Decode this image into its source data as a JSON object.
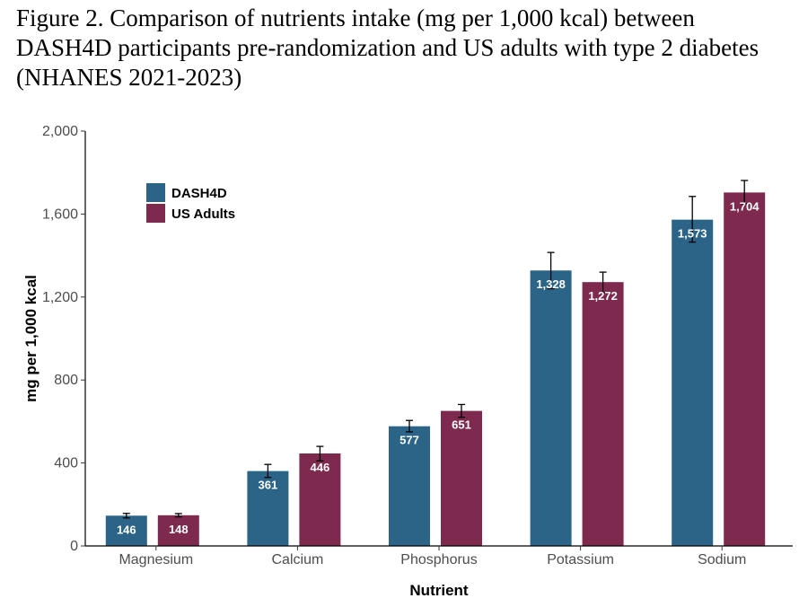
{
  "figure": {
    "caption": "Figure 2. Comparison of nutrients intake (mg per 1,000 kcal) between DASH4D participants pre-randomization and US adults with type 2 diabetes (NHANES 2021-2023)"
  },
  "chart_data": {
    "type": "bar",
    "title": "",
    "xlabel": "Nutrient",
    "ylabel": "mg per 1,000 kcal",
    "ylim": [
      0,
      2000
    ],
    "yticks": [
      0,
      400,
      800,
      1200,
      1600,
      2000
    ],
    "ytick_labels": [
      "0",
      "400",
      "800",
      "1,200",
      "1,600",
      "2,000"
    ],
    "categories": [
      "Magnesium",
      "Calcium",
      "Phosphorus",
      "Potassium",
      "Sodium"
    ],
    "legend_position": "top-left",
    "series": [
      {
        "name": "DASH4D",
        "color": "#2c6488",
        "values": [
          146,
          361,
          577,
          1328,
          1573
        ],
        "labels": [
          "146",
          "361",
          "577",
          "1,328",
          "1,573"
        ],
        "error_low": [
          135,
          330,
          550,
          1240,
          1465
        ],
        "error_high": [
          157,
          393,
          605,
          1415,
          1685
        ]
      },
      {
        "name": "US Adults",
        "color": "#7e2a4f",
        "values": [
          148,
          446,
          651,
          1272,
          1704
        ],
        "labels": [
          "148",
          "446",
          "651",
          "1,272",
          "1,704"
        ],
        "error_low": [
          140,
          410,
          620,
          1220,
          1650
        ],
        "error_high": [
          156,
          480,
          682,
          1320,
          1762
        ]
      }
    ]
  }
}
